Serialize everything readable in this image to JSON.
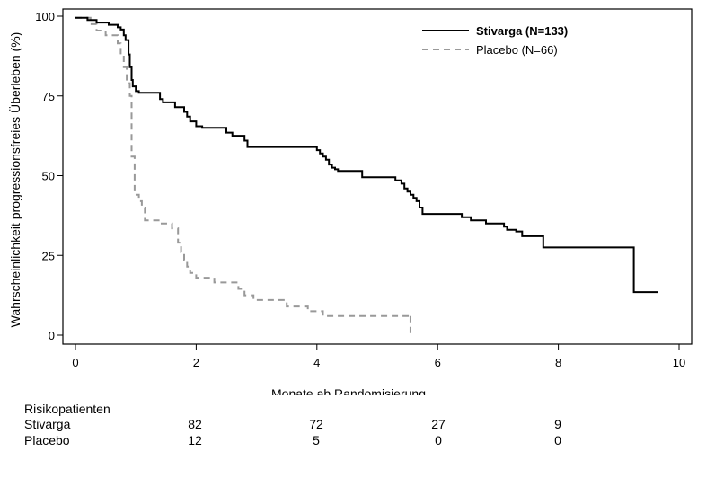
{
  "chart_data": {
    "type": "line",
    "title": "",
    "xlabel": "Monate ab Randomisierung",
    "ylabel": "Wahrscheinlichkeit progressionsfreies Überleben (%)",
    "xlim": [
      0,
      10
    ],
    "ylim": [
      0,
      100
    ],
    "xticks": [
      0,
      2,
      4,
      6,
      8,
      10
    ],
    "yticks": [
      0,
      25,
      50,
      75,
      100
    ],
    "grid": false,
    "legend_position": "top-right",
    "series": [
      {
        "name": "Stivarga (N=133)",
        "color": "#000000",
        "style": "solid",
        "x": [
          0,
          0.2,
          0.35,
          0.55,
          0.7,
          0.75,
          0.8,
          0.83,
          0.88,
          0.9,
          0.93,
          0.95,
          1.0,
          1.05,
          1.4,
          1.45,
          1.65,
          1.8,
          1.85,
          1.9,
          2.0,
          2.1,
          2.5,
          2.6,
          2.8,
          2.85,
          4.0,
          4.05,
          4.1,
          4.15,
          4.2,
          4.25,
          4.3,
          4.35,
          4.5,
          4.75,
          5.3,
          5.4,
          5.45,
          5.5,
          5.55,
          5.6,
          5.65,
          5.7,
          5.75,
          6.0,
          6.4,
          6.55,
          6.8,
          7.1,
          7.15,
          7.3,
          7.4,
          7.75,
          9.2,
          9.25,
          9.65
        ],
        "y": [
          99.5,
          98.8,
          98,
          97.3,
          96.5,
          95.8,
          94,
          92.5,
          88,
          84,
          80,
          78,
          76.5,
          76,
          74,
          73,
          71.5,
          70,
          68.5,
          67,
          65.5,
          65,
          63.5,
          62.5,
          61,
          59,
          58,
          57,
          56,
          55,
          53.5,
          52.5,
          52,
          51.5,
          51.5,
          49.5,
          48.5,
          47.5,
          46,
          45,
          44,
          43,
          42,
          40,
          38,
          38,
          37,
          36,
          35,
          34,
          33,
          32.5,
          31,
          27.5,
          27.5,
          13.5,
          13.5
        ]
      },
      {
        "name": "Placebo (N=66)",
        "color": "#999999",
        "style": "dashed",
        "x": [
          0,
          0.25,
          0.35,
          0.5,
          0.7,
          0.75,
          0.8,
          0.85,
          0.9,
          0.93,
          0.98,
          1.05,
          1.1,
          1.15,
          1.4,
          1.6,
          1.7,
          1.75,
          1.8,
          1.85,
          1.9,
          2.0,
          2.3,
          2.7,
          2.8,
          2.95,
          3.5,
          3.85,
          4.1,
          5.55
        ],
        "y": [
          99.5,
          97.5,
          95.5,
          94,
          91.5,
          88,
          84,
          79,
          75,
          56,
          44,
          42,
          40,
          36,
          35,
          33.5,
          29,
          26,
          23.5,
          21.5,
          19.5,
          18,
          16.5,
          14.5,
          12.5,
          11,
          9,
          7.5,
          6,
          6
        ]
      }
    ]
  },
  "axes": {
    "xlabel": "Monate ab Randomisierung",
    "ylabel": "Wahrscheinlichkeit progressionsfreies Überleben (%)",
    "xtick_labels": [
      "0",
      "2",
      "4",
      "6",
      "8",
      "10"
    ],
    "ytick_labels": [
      "0",
      "25",
      "50",
      "75",
      "100"
    ]
  },
  "legend": {
    "stivarga": "Stivarga (N=133)",
    "placebo": "Placebo (N=66)"
  },
  "risk_table": {
    "title": "Risikopatienten",
    "rows": [
      {
        "label": "Stivarga",
        "values": [
          "82",
          "72",
          "27",
          "9"
        ]
      },
      {
        "label": "Placebo",
        "values": [
          "12",
          "5",
          "0",
          "0"
        ]
      }
    ]
  }
}
